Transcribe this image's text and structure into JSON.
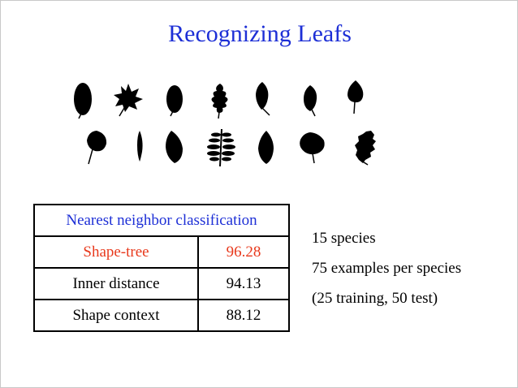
{
  "slide": {
    "title": "Recognizing Leafs"
  },
  "leaves": {
    "icon_names": [
      "oval-leaf-icon",
      "maple-leaf-icon",
      "oval-leaf-icon",
      "oak-leaf-icon",
      "pointed-leaf-icon",
      "oval-leaf-icon",
      "heart-leaf-icon",
      "round-leaf-icon",
      "narrow-leaf-icon",
      "oval-leaf-icon",
      "compound-leaf-icon",
      "oval-leaf-icon",
      "heart-leaf-icon",
      "serrated-leaf-icon"
    ]
  },
  "table": {
    "header": "Nearest neighbor classification",
    "rows": [
      {
        "method": "Shape-tree",
        "score": "96.28"
      },
      {
        "method": "Inner distance",
        "score": "94.13"
      },
      {
        "method": "Shape context",
        "score": "88.12"
      }
    ],
    "highlight_color": "#e8391c"
  },
  "info": {
    "species": "15 species",
    "examples": "75 examples per species",
    "split": "(25 training, 50 test)"
  },
  "colors": {
    "title": "#1d2fd6",
    "header": "#1d2fd6"
  }
}
